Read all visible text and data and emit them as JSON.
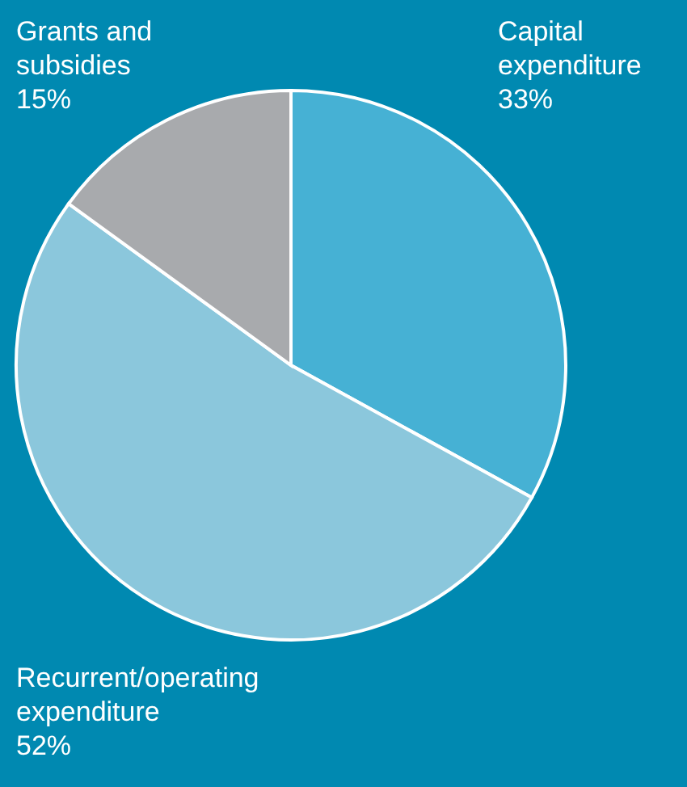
{
  "chart_data": {
    "type": "pie",
    "categories": [
      "Capital expenditure",
      "Recurrent/operating expenditure",
      "Grants and subsidies"
    ],
    "values": [
      33,
      52,
      15
    ],
    "value_labels": [
      "33%",
      "52%",
      "15%"
    ],
    "colors": [
      "#46b1d4",
      "#8bc7dc",
      "#a8aaad"
    ]
  }
}
